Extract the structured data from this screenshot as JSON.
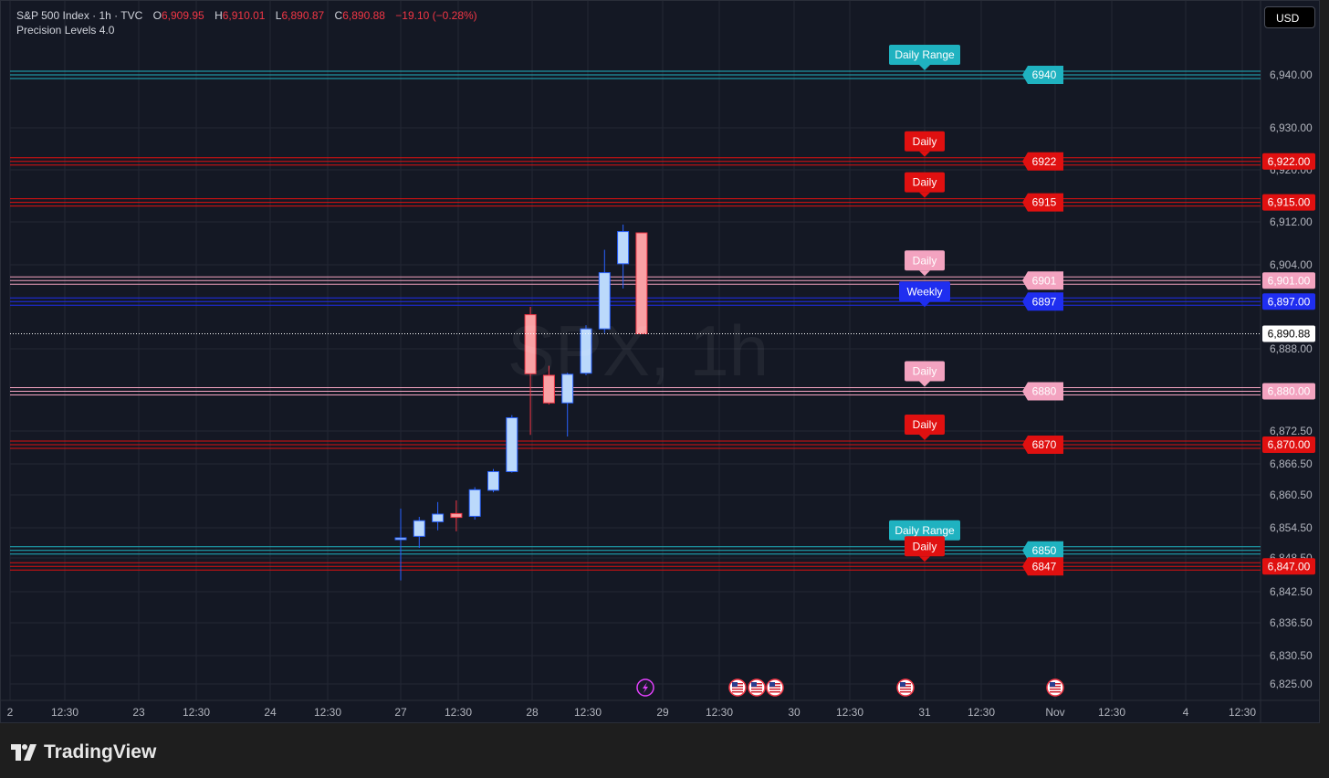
{
  "header": {
    "symbol": "S&P 500 Index · 1h · TVC",
    "ohlc": [
      {
        "label": "O",
        "value": "6,909.95"
      },
      {
        "label": "H",
        "value": "6,910.01"
      },
      {
        "label": "L",
        "value": "6,890.87"
      },
      {
        "label": "C",
        "value": "6,890.88"
      }
    ],
    "change": "−19.10 (−0.28%)",
    "indicator": "Precision Levels 4.0",
    "currency": "USD"
  },
  "watermark": "SPX, 1h",
  "brand": "TradingView",
  "colors": {
    "background": "#141824",
    "grid": "#232734",
    "bull_candle": "#bbd9fb",
    "bear_candle": "#faa1a4",
    "daily_red": "#e01010",
    "daily_pink": "#f3a3c0",
    "daily_range_teal": "#1fb2c0",
    "weekly_blue": "#1f2ef0",
    "axis_text": "#b2b5be"
  },
  "chart_data": {
    "type": "candlestick",
    "timeframe": "1h",
    "y_axis_ticks": [
      "6,940.00",
      "6,930.00",
      "6,920.00",
      "6,912.00",
      "6,904.00",
      "6,888.00",
      "6,872.50",
      "6,866.50",
      "6,860.50",
      "6,854.50",
      "6,848.50",
      "6,842.50",
      "6,836.50",
      "6,830.50",
      "6,825.00"
    ],
    "x_axis_ticks": [
      "2",
      "12:30",
      "23",
      "12:30",
      "24",
      "12:30",
      "27",
      "12:30",
      "28",
      "12:30",
      "29",
      "12:30",
      "30",
      "12:30",
      "31",
      "12:30",
      "Nov",
      "12:30",
      "4",
      "12:30"
    ],
    "current_price": 6890.88,
    "current_price_label": "6,890.88",
    "candles": [
      {
        "o": 6852.5,
        "h": 6858.0,
        "l": 6844.5,
        "c": 6852.5
      },
      {
        "o": 6852.8,
        "h": 6856.5,
        "l": 6850.5,
        "c": 6855.8
      },
      {
        "o": 6855.6,
        "h": 6859.2,
        "l": 6854.0,
        "c": 6857.0
      },
      {
        "o": 6857.1,
        "h": 6859.5,
        "l": 6853.8,
        "c": 6856.4
      },
      {
        "o": 6856.6,
        "h": 6862.0,
        "l": 6856.0,
        "c": 6861.5
      },
      {
        "o": 6861.4,
        "h": 6865.5,
        "l": 6861.0,
        "c": 6865.0
      },
      {
        "o": 6865.0,
        "h": 6875.5,
        "l": 6864.8,
        "c": 6875.0
      },
      {
        "o": 6894.5,
        "h": 6896.0,
        "l": 6871.8,
        "c": 6883.3
      },
      {
        "o": 6883.0,
        "h": 6884.8,
        "l": 6877.5,
        "c": 6877.8
      },
      {
        "o": 6877.8,
        "h": 6883.5,
        "l": 6871.5,
        "c": 6883.2
      },
      {
        "o": 6883.4,
        "h": 6892.5,
        "l": 6883.0,
        "c": 6891.8
      },
      {
        "o": 6891.8,
        "h": 6906.8,
        "l": 6891.0,
        "c": 6902.5
      },
      {
        "o": 6904.2,
        "h": 6911.5,
        "l": 6899.5,
        "c": 6910.2
      },
      {
        "o": 6909.95,
        "h": 6910.01,
        "l": 6890.87,
        "c": 6890.88
      }
    ],
    "levels": [
      {
        "price": 6940,
        "kind": "Daily Range",
        "color": "#1fb2c0",
        "value_label": "6940",
        "axis_label": "6,940.00",
        "show_axis_tag": false
      },
      {
        "price": 6922,
        "kind": "Daily",
        "color": "#e01010",
        "value_label": "6922",
        "axis_label": "6,922.00",
        "show_axis_tag": true
      },
      {
        "price": 6915,
        "kind": "Daily",
        "color": "#e01010",
        "value_label": "6915",
        "axis_label": "6,915.00",
        "show_axis_tag": true
      },
      {
        "price": 6901,
        "kind": "Daily",
        "color": "#f3a3c0",
        "value_label": "6901",
        "axis_label": "6,901.00",
        "show_axis_tag": true
      },
      {
        "price": 6897,
        "kind": "Weekly",
        "color": "#1f2ef0",
        "value_label": "6897",
        "axis_label": "6,897.00",
        "show_axis_tag": true
      },
      {
        "price": 6880,
        "kind": "Daily",
        "color": "#f3a3c0",
        "value_label": "6880",
        "axis_label": "6,880.00",
        "show_axis_tag": true
      },
      {
        "price": 6870,
        "kind": "Daily",
        "color": "#e01010",
        "value_label": "6870",
        "axis_label": "6,870.00",
        "show_axis_tag": true
      },
      {
        "price": 6850,
        "kind": "Daily Range",
        "color": "#1fb2c0",
        "value_label": "6850",
        "axis_label": "6,850.00",
        "show_axis_tag": false
      },
      {
        "price": 6847,
        "kind": "Daily",
        "color": "#e01010",
        "value_label": "6847",
        "axis_label": "6,847.00",
        "show_axis_tag": true
      }
    ],
    "event_markers": [
      "lightning-icon",
      "us-flag-icon",
      "us-flag-icon",
      "us-flag-icon",
      "us-flag-icon",
      "us-flag-icon"
    ],
    "grid": true
  }
}
